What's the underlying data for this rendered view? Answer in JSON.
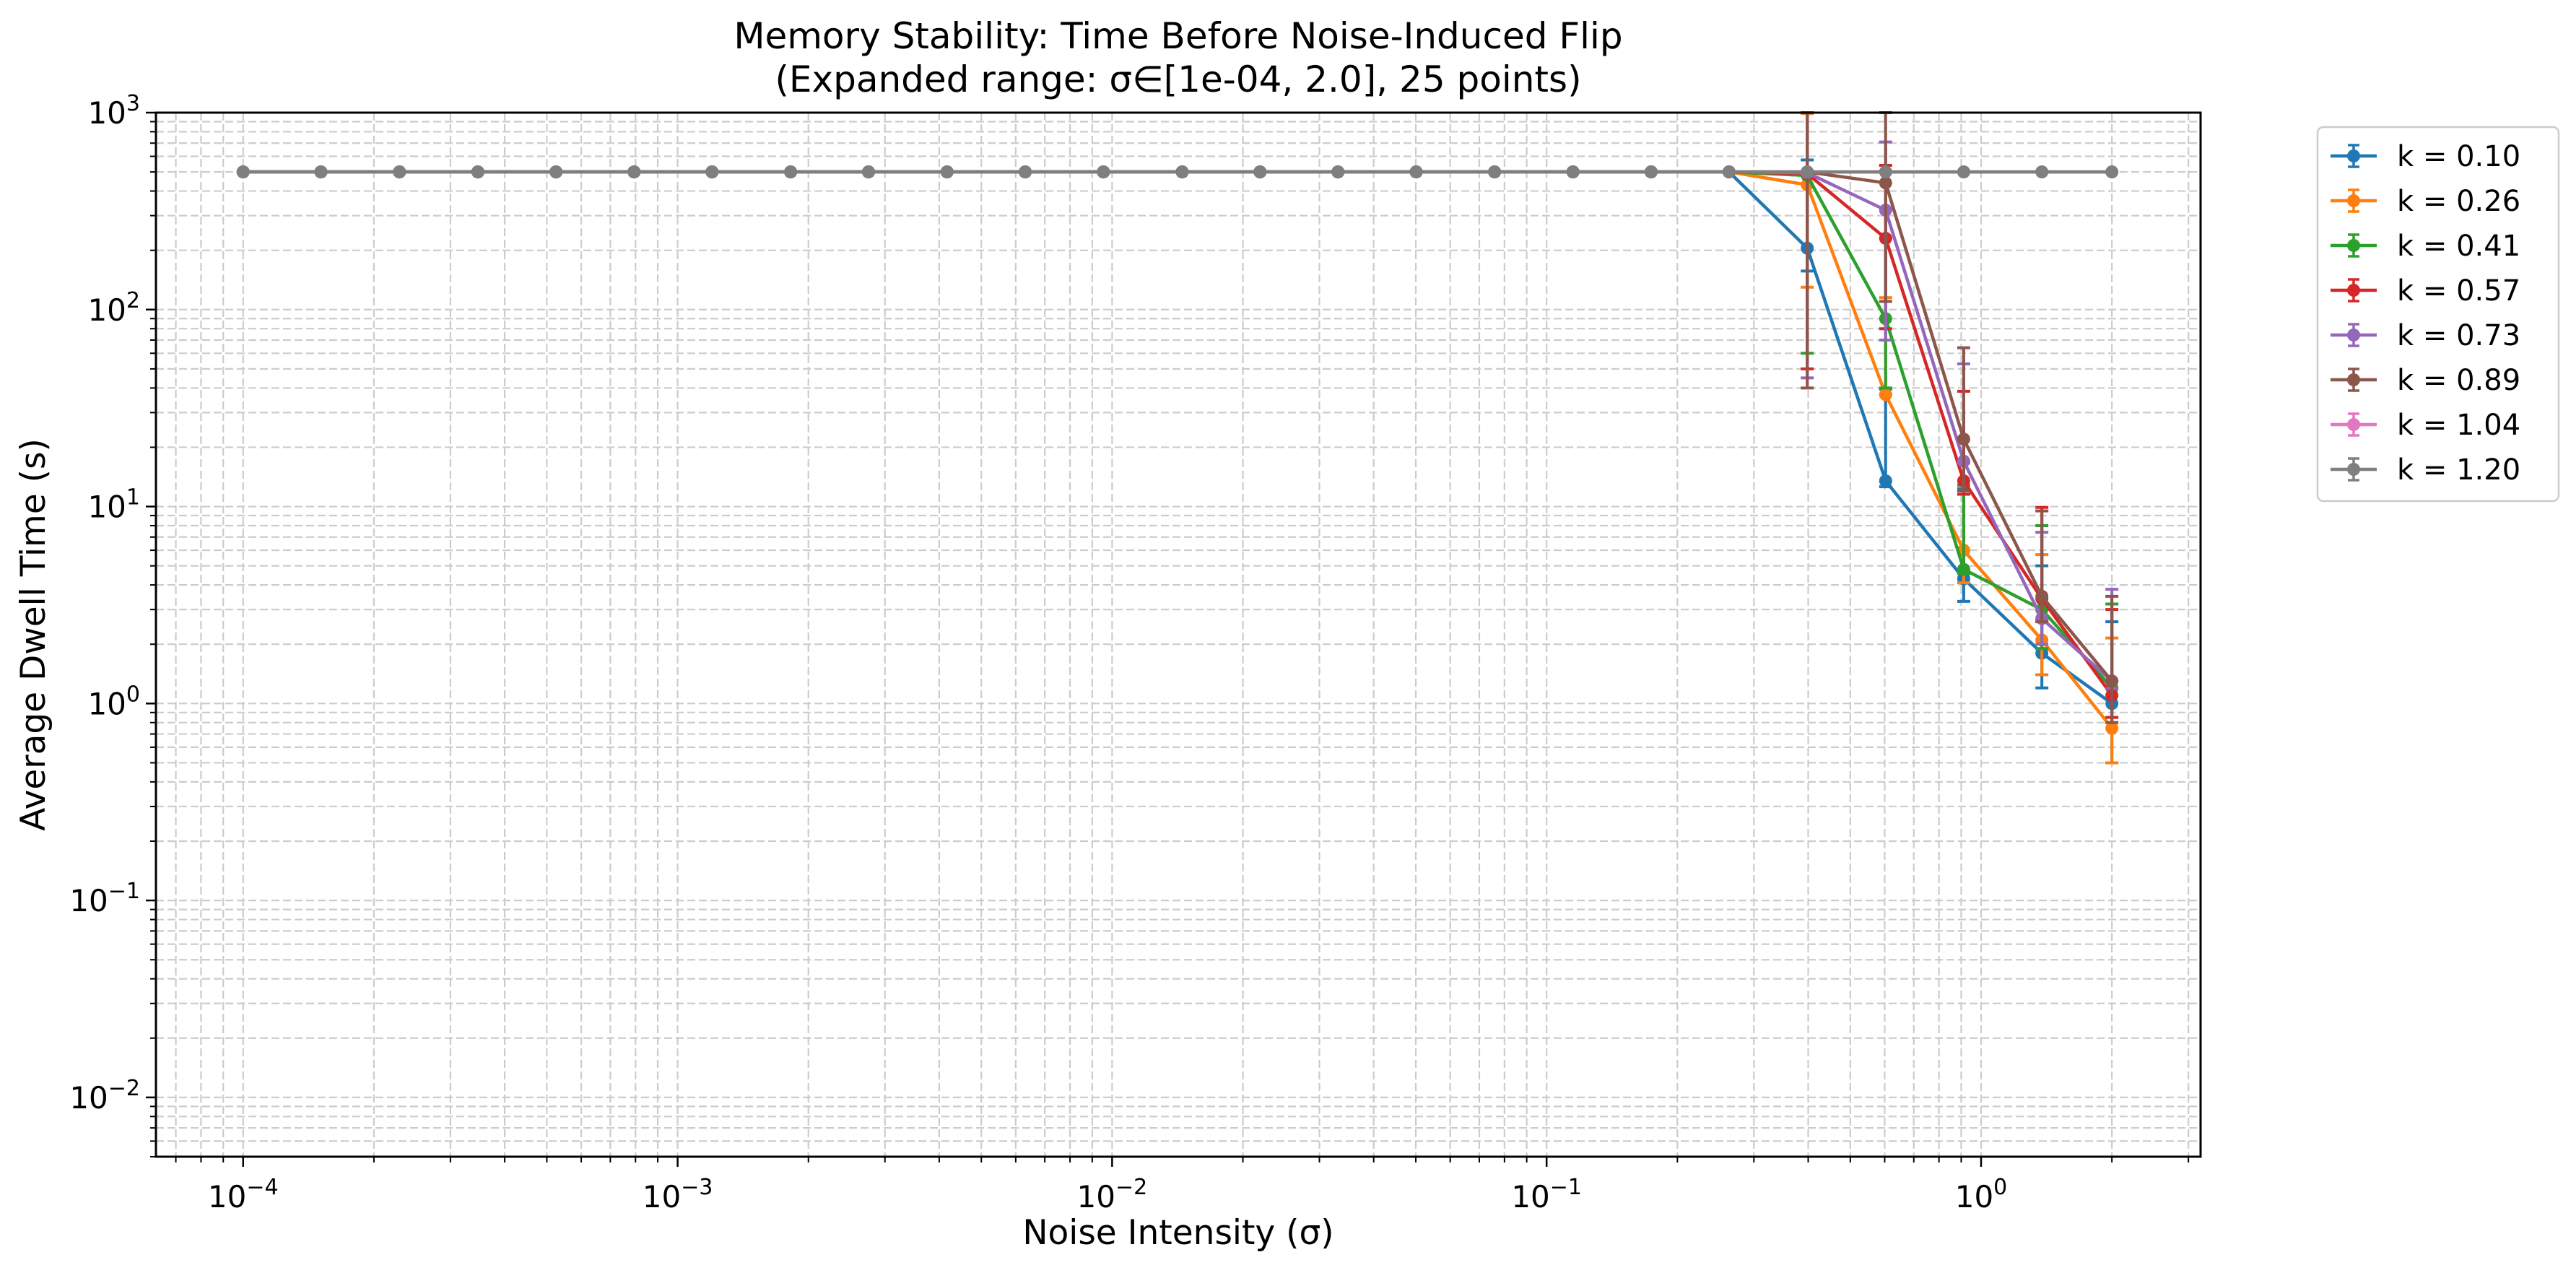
{
  "chart_data": {
    "type": "line",
    "title": "Memory Stability: Time Before Noise-Induced Flip",
    "subtitle": "(Expanded range: σ∈[1e-04, 2.0], 25 points)",
    "xlabel": "Noise Intensity (σ)",
    "ylabel": "Average Dwell Time (s)",
    "xscale": "log",
    "yscale": "log",
    "xlim": [
      6.3e-05,
      3.2
    ],
    "ylim": [
      0.005,
      1000
    ],
    "grid": true,
    "legend_position": "outside-right-top",
    "x_ticks": [
      {
        "value": 0.0001,
        "base": "10",
        "exp": "−4"
      },
      {
        "value": 0.001,
        "base": "10",
        "exp": "−3"
      },
      {
        "value": 0.01,
        "base": "10",
        "exp": "−2"
      },
      {
        "value": 0.1,
        "base": "10",
        "exp": "−1"
      },
      {
        "value": 1,
        "base": "10",
        "exp": "0"
      }
    ],
    "y_ticks": [
      {
        "value": 0.01,
        "base": "10",
        "exp": "−2"
      },
      {
        "value": 0.1,
        "base": "10",
        "exp": "−1"
      },
      {
        "value": 1,
        "base": "10",
        "exp": "0"
      },
      {
        "value": 10,
        "base": "10",
        "exp": "1"
      },
      {
        "value": 100,
        "base": "10",
        "exp": "2"
      },
      {
        "value": 1000,
        "base": "10",
        "exp": "3"
      }
    ],
    "x": [
      0.0001,
      0.000151,
      0.000229,
      0.000347,
      0.000525,
      0.000794,
      0.0012,
      0.00182,
      0.00275,
      0.00417,
      0.00631,
      0.00955,
      0.0145,
      0.0219,
      0.0331,
      0.0501,
      0.0759,
      0.115,
      0.174,
      0.263,
      0.398,
      0.603,
      0.912,
      1.38,
      2.0
    ],
    "series": [
      {
        "name": "k = 0.10",
        "color": "#1f77b4",
        "values": [
          500,
          500,
          500,
          500,
          500,
          500,
          500,
          500,
          500,
          500,
          500,
          500,
          500,
          500,
          500,
          500,
          500,
          500,
          500,
          500,
          205,
          13.5,
          4.3,
          1.8,
          1.0
        ],
        "err_low": [
          0,
          0,
          0,
          0,
          0,
          0,
          0,
          0,
          0,
          0,
          0,
          0,
          0,
          0,
          0,
          0,
          0,
          0,
          0,
          0,
          48,
          0.9,
          1.0,
          0.6,
          0.5
        ],
        "err_high": [
          0,
          0,
          0,
          0,
          0,
          0,
          0,
          0,
          0,
          0,
          0,
          0,
          0,
          0,
          0,
          0,
          0,
          0,
          0,
          0,
          370,
          26,
          8,
          3.2,
          1.6
        ]
      },
      {
        "name": "k = 0.26",
        "color": "#ff7f0e",
        "values": [
          500,
          500,
          500,
          500,
          500,
          500,
          500,
          500,
          500,
          500,
          500,
          500,
          500,
          500,
          500,
          500,
          500,
          500,
          500,
          500,
          430,
          37,
          6.0,
          2.1,
          0.75
        ],
        "err_low": [
          0,
          0,
          0,
          0,
          0,
          0,
          0,
          0,
          0,
          0,
          0,
          0,
          0,
          0,
          0,
          0,
          0,
          0,
          0,
          0,
          300,
          0.005,
          1.9,
          0.7,
          0.25
        ],
        "err_high": [
          0,
          0,
          0,
          0,
          0,
          0,
          0,
          0,
          0,
          0,
          0,
          0,
          0,
          0,
          0,
          0,
          0,
          0,
          0,
          0,
          560,
          78,
          11,
          3.6,
          1.4
        ]
      },
      {
        "name": "k = 0.41",
        "color": "#2ca02c",
        "values": [
          500,
          500,
          500,
          500,
          500,
          500,
          500,
          500,
          500,
          500,
          500,
          500,
          500,
          500,
          500,
          500,
          500,
          500,
          500,
          500,
          480,
          90,
          4.8,
          3.0,
          1.2
        ],
        "err_low": [
          0,
          0,
          0,
          0,
          0,
          0,
          0,
          0,
          0,
          0,
          0,
          0,
          0,
          0,
          0,
          0,
          0,
          0,
          0,
          0,
          420,
          50,
          0.23,
          1.1,
          0.008
        ],
        "err_high": [
          0,
          0,
          0,
          0,
          0,
          0,
          0,
          0,
          0,
          0,
          0,
          0,
          0,
          0,
          0,
          0,
          0,
          0,
          0,
          0,
          540,
          140,
          8,
          5,
          2.0
        ]
      },
      {
        "name": "k = 0.57",
        "color": "#d62728",
        "values": [
          500,
          500,
          500,
          500,
          500,
          500,
          500,
          500,
          500,
          500,
          500,
          500,
          500,
          500,
          500,
          500,
          500,
          500,
          500,
          500,
          490,
          230,
          13.5,
          3.4,
          1.1
        ],
        "err_low": [
          0,
          0,
          0,
          0,
          0,
          0,
          0,
          0,
          0,
          0,
          0,
          0,
          0,
          0,
          0,
          0,
          0,
          0,
          0,
          0,
          440,
          150,
          1.95,
          0.75,
          0.25
        ],
        "err_high": [
          0,
          0,
          0,
          0,
          0,
          0,
          0,
          0,
          0,
          0,
          0,
          0,
          0,
          0,
          0,
          0,
          0,
          0,
          0,
          0,
          540,
          310,
          25,
          6.5,
          1.9
        ]
      },
      {
        "name": "k = 0.73",
        "color": "#9467bd",
        "values": [
          500,
          500,
          500,
          500,
          500,
          500,
          500,
          500,
          500,
          500,
          500,
          500,
          500,
          500,
          500,
          500,
          500,
          500,
          500,
          500,
          495,
          320,
          17,
          2.7,
          1.3
        ],
        "err_low": [
          0,
          0,
          0,
          0,
          0,
          0,
          0,
          0,
          0,
          0,
          0,
          0,
          0,
          0,
          0,
          0,
          0,
          0,
          0,
          0,
          450,
          250,
          0.36,
          0.7,
          0.11
        ],
        "err_high": [
          0,
          0,
          0,
          0,
          0,
          0,
          0,
          0,
          0,
          0,
          0,
          0,
          0,
          0,
          0,
          0,
          0,
          0,
          0,
          0,
          540,
          390,
          36,
          4.7,
          2.5
        ]
      },
      {
        "name": "k = 0.89",
        "color": "#8c564b",
        "values": [
          500,
          500,
          500,
          500,
          500,
          500,
          500,
          500,
          500,
          500,
          500,
          500,
          500,
          500,
          500,
          500,
          500,
          500,
          500,
          500,
          500,
          440,
          22,
          3.5,
          1.3
        ],
        "err_low": [
          0,
          0,
          0,
          0,
          0,
          0,
          0,
          0,
          0,
          0,
          0,
          0,
          0,
          0,
          0,
          0,
          0,
          0,
          0,
          0,
          460,
          330,
          10,
          0.9,
          0.5
        ],
        "err_high": [
          0,
          0,
          0,
          0,
          0,
          0,
          0,
          0,
          0,
          0,
          0,
          0,
          0,
          0,
          0,
          0,
          0,
          0,
          0,
          0,
          540,
          580,
          42,
          6,
          2.2
        ]
      },
      {
        "name": "k = 1.04",
        "color": "#e377c2",
        "values": [
          500,
          500,
          500,
          500,
          500,
          500,
          500,
          500,
          500,
          500,
          500,
          500,
          500,
          500,
          500,
          500,
          500,
          500,
          500,
          500,
          500,
          500,
          500,
          500,
          500
        ],
        "err_low": [
          0,
          0,
          0,
          0,
          0,
          0,
          0,
          0,
          0,
          0,
          0,
          0,
          0,
          0,
          0,
          0,
          0,
          0,
          0,
          0,
          0,
          0,
          0,
          0,
          0
        ],
        "err_high": [
          0,
          0,
          0,
          0,
          0,
          0,
          0,
          0,
          0,
          0,
          0,
          0,
          0,
          0,
          0,
          0,
          0,
          0,
          0,
          0,
          0,
          0,
          0,
          0,
          0
        ]
      },
      {
        "name": "k = 1.20",
        "color": "#7f7f7f",
        "values": [
          500,
          500,
          500,
          500,
          500,
          500,
          500,
          500,
          500,
          500,
          500,
          500,
          500,
          500,
          500,
          500,
          500,
          500,
          500,
          500,
          500,
          500,
          500,
          500,
          500
        ],
        "err_low": [
          0,
          0,
          0,
          0,
          0,
          0,
          0,
          0,
          0,
          0,
          0,
          0,
          0,
          0,
          0,
          0,
          0,
          0,
          0,
          0,
          0,
          0,
          0,
          0,
          0
        ],
        "err_high": [
          0,
          0,
          0,
          0,
          0,
          0,
          0,
          0,
          0,
          0,
          0,
          0,
          0,
          0,
          0,
          0,
          0,
          0,
          0,
          0,
          0,
          0,
          0,
          0,
          0
        ]
      }
    ]
  }
}
